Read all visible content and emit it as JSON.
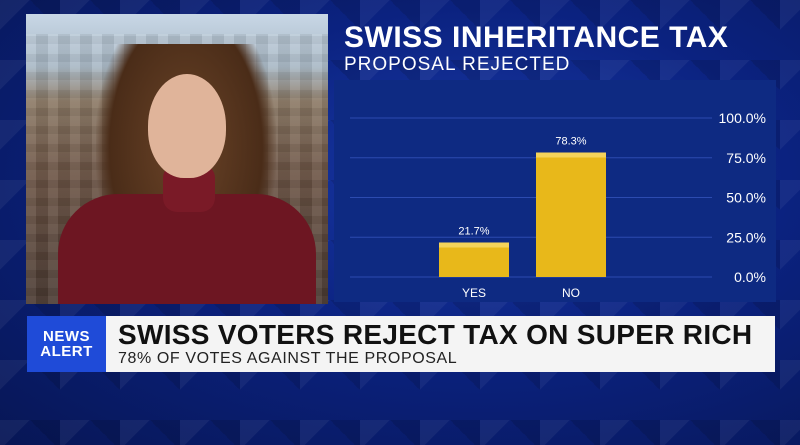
{
  "headline": {
    "title": "SWISS INHERITANCE TAX",
    "subtitle": "PROPOSAL REJECTED"
  },
  "lower_third": {
    "badge_line1": "NEWS",
    "badge_line2": "ALERT",
    "headline": "SWISS VOTERS REJECT TAX ON SUPER RICH",
    "subheadline": "78% OF VOTES AGAINST THE PROPOSAL"
  },
  "colors": {
    "bar": "#e8b81a",
    "bar_top": "#f4d35a",
    "panel": "#0e2a82",
    "gridline": "#2c4bb0",
    "badge": "#1f4bd8"
  },
  "chart_data": {
    "type": "bar",
    "title": "",
    "xlabel": "",
    "ylabel": "",
    "categories": [
      "YES",
      "NO"
    ],
    "values": [
      21.7,
      78.3
    ],
    "value_labels": [
      "21.7%",
      "78.3%"
    ],
    "ylim": [
      0,
      100
    ],
    "yticks": [
      0,
      25,
      50,
      75,
      100
    ],
    "ytick_labels": [
      "0.0%",
      "25.0%",
      "50.0%",
      "75.0%",
      "100.0%"
    ],
    "y_axis_side": "right",
    "grid": true
  }
}
